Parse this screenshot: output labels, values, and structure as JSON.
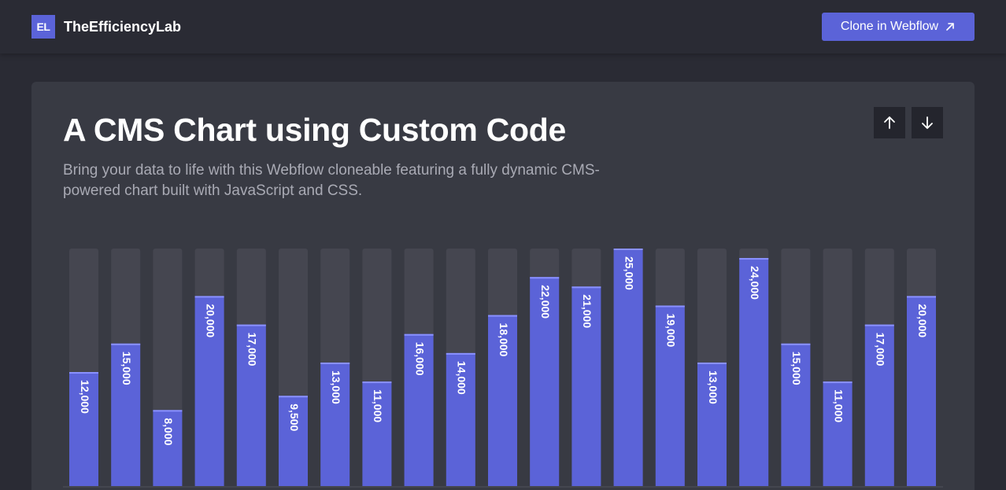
{
  "navbar": {
    "logo_text": "EL",
    "brand_name": "TheEfficiencyLab",
    "clone_label": "Clone in Webflow"
  },
  "card": {
    "title": "A CMS Chart using Custom Code",
    "subtitle": "Bring your data to life with this Webflow cloneable featuring a fully dynamic CMS-powered chart built with JavaScript and CSS."
  },
  "colors": {
    "bar": "#5b63d8",
    "bar_top": "#8a91ff",
    "track": "#454650",
    "card": "#383a43",
    "background": "#2a2b34"
  },
  "icons": {
    "sort_up": "arrow-up-icon",
    "sort_down": "arrow-down-icon",
    "external": "arrow-up-right-icon"
  },
  "chart_data": {
    "type": "bar",
    "orientation": "vertical",
    "values": [
      12000,
      15000,
      8000,
      20000,
      17000,
      9500,
      13000,
      11000,
      16000,
      14000,
      18000,
      22000,
      21000,
      25000,
      19000,
      13000,
      24000,
      15000,
      11000,
      17000,
      20000
    ],
    "labels": [
      "12,000",
      "15,000",
      "8,000",
      "20,000",
      "17,000",
      "9,500",
      "13,000",
      "11,000",
      "16,000",
      "14,000",
      "18,000",
      "22,000",
      "21,000",
      "25,000",
      "19,000",
      "13,000",
      "24,000",
      "15,000",
      "11,000",
      "17,000",
      "20,000"
    ],
    "ylim": [
      0,
      25000
    ],
    "grid": false,
    "legend": "none"
  }
}
